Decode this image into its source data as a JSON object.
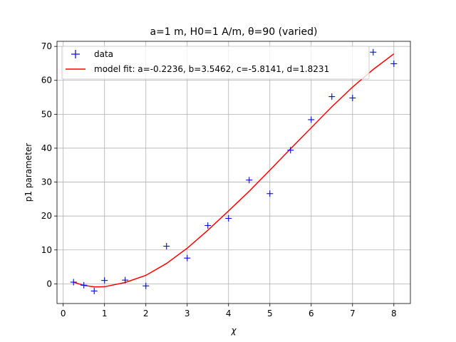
{
  "chart_data": {
    "type": "scatter",
    "title": "a=1 m, H0=1 A/m, θ=90 (varied)",
    "xlabel": "χ",
    "ylabel": "p1 parameter",
    "xlim": [
      -0.15,
      8.4
    ],
    "ylim": [
      -5.8,
      71.5
    ],
    "xticks": [
      0,
      1,
      2,
      3,
      4,
      5,
      6,
      7,
      8
    ],
    "yticks": [
      0,
      10,
      20,
      30,
      40,
      50,
      60,
      70
    ],
    "grid": true,
    "legend_position": "top-left",
    "series": [
      {
        "name": "data",
        "kind": "markers",
        "marker": "plus",
        "color": "#0000ff",
        "x": [
          0.25,
          0.5,
          0.75,
          1.0,
          1.5,
          2.0,
          2.5,
          3.0,
          3.5,
          4.0,
          4.5,
          5.0,
          5.5,
          6.0,
          6.5,
          7.0,
          7.5,
          8.0
        ],
        "y": [
          0.5,
          -0.4,
          -2.1,
          1.0,
          1.1,
          -0.6,
          11.1,
          7.6,
          17.2,
          19.3,
          30.6,
          26.6,
          39.4,
          48.4,
          55.2,
          54.8,
          68.3,
          64.9
        ]
      },
      {
        "name": "model fit: a=-0.2236, b=3.5462, c=-5.8141, d=1.8231",
        "kind": "line",
        "color": "#ff0000",
        "x": [
          0.25,
          0.5,
          0.75,
          1.0,
          1.5,
          2.0,
          2.5,
          3.0,
          3.5,
          4.0,
          4.5,
          5.0,
          5.5,
          6.0,
          6.5,
          7.0,
          7.5,
          8.0
        ],
        "y": [
          0.5,
          -0.45,
          -0.9,
          -0.85,
          0.4,
          2.5,
          6.0,
          10.5,
          15.8,
          21.5,
          27.3,
          33.5,
          39.8,
          46.0,
          52.2,
          58.0,
          63.2,
          67.8
        ]
      }
    ]
  }
}
